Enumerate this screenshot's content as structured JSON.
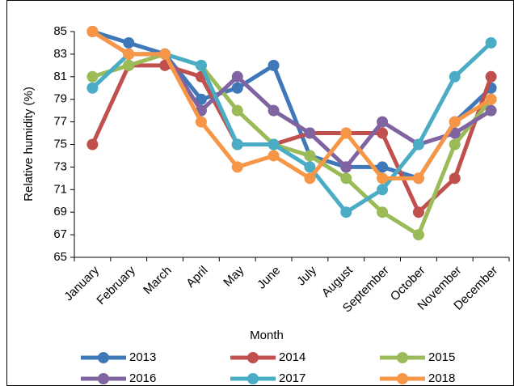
{
  "chart_data": {
    "type": "line",
    "x_label": "Month",
    "y_label": "Relative humidity (%)",
    "categories": [
      "January",
      "February",
      "March",
      "April",
      "May",
      "June",
      "July",
      "August",
      "September",
      "October",
      "November",
      "December"
    ],
    "series": [
      {
        "name": "2013",
        "color": "#3f78b8",
        "values": [
          85,
          84,
          83,
          79,
          80,
          82,
          74,
          73,
          73,
          72,
          77,
          80
        ]
      },
      {
        "name": "2014",
        "color": "#c0504d",
        "values": [
          75,
          82,
          82,
          81,
          75,
          75,
          76,
          76,
          76,
          69,
          72,
          81
        ]
      },
      {
        "name": "2015",
        "color": "#9bbb59",
        "values": [
          81,
          82,
          83,
          82,
          78,
          75,
          74,
          72,
          69,
          67,
          75,
          79
        ]
      },
      {
        "name": "2016",
        "color": "#8064a2",
        "values": [
          85,
          83,
          83,
          78,
          81,
          78,
          76,
          73,
          77,
          75,
          76,
          78
        ]
      },
      {
        "name": "2017",
        "color": "#4bacc6",
        "values": [
          80,
          83,
          83,
          82,
          75,
          75,
          73,
          69,
          71,
          75,
          81,
          84
        ]
      },
      {
        "name": "2018",
        "color": "#f79646",
        "values": [
          85,
          83,
          83,
          77,
          73,
          74,
          72,
          76,
          72,
          72,
          77,
          79
        ]
      }
    ],
    "ylim": [
      65,
      85
    ],
    "yticks": [
      65,
      67,
      69,
      71,
      73,
      75,
      77,
      79,
      81,
      83,
      85
    ],
    "grid": false
  }
}
